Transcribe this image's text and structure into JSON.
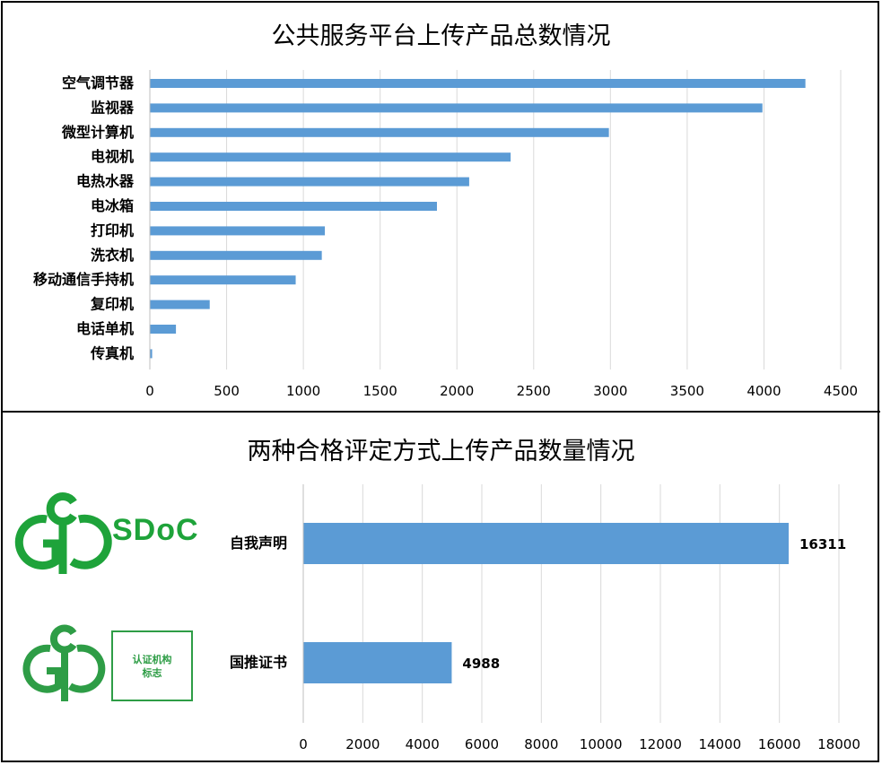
{
  "charts": {
    "top": {
      "title": "公共服务平台上传产品总数情况"
    },
    "bottom": {
      "title": "两种合格评定方式上传产品数量情况"
    }
  },
  "logos": {
    "sdoc_text": "SDoC",
    "box_line1": "认证机构",
    "box_line2": "标志"
  },
  "colors": {
    "bar": "#5b9bd5",
    "grid": "#d9d9d9",
    "logo_green": "#2e9d46"
  },
  "chart_data": [
    {
      "type": "bar",
      "orientation": "horizontal",
      "title": "公共服务平台上传产品总数情况",
      "categories": [
        "空气调节器",
        "监视器",
        "微型计算机",
        "电视机",
        "电热水器",
        "电冰箱",
        "打印机",
        "洗衣机",
        "移动通信手持机",
        "复印机",
        "电话单机",
        "传真机"
      ],
      "values": [
        4270,
        3990,
        2990,
        2350,
        2080,
        1870,
        1140,
        1120,
        950,
        390,
        170,
        15
      ],
      "xlim": [
        0,
        4500
      ],
      "xticks": [
        0,
        500,
        1000,
        1500,
        2000,
        2500,
        3000,
        3500,
        4000,
        4500
      ],
      "grid": "vertical",
      "xlabel": "",
      "ylabel": ""
    },
    {
      "type": "bar",
      "orientation": "horizontal",
      "title": "两种合格评定方式上传产品数量情况",
      "categories": [
        "自我声明",
        "国推证书"
      ],
      "values": [
        16311,
        4988
      ],
      "data_labels": [
        "16311",
        "4988"
      ],
      "xlim": [
        0,
        18000
      ],
      "xticks": [
        0,
        2000,
        4000,
        6000,
        8000,
        10000,
        12000,
        14000,
        16000,
        18000
      ],
      "grid": "vertical",
      "xlabel": "",
      "ylabel": ""
    }
  ]
}
